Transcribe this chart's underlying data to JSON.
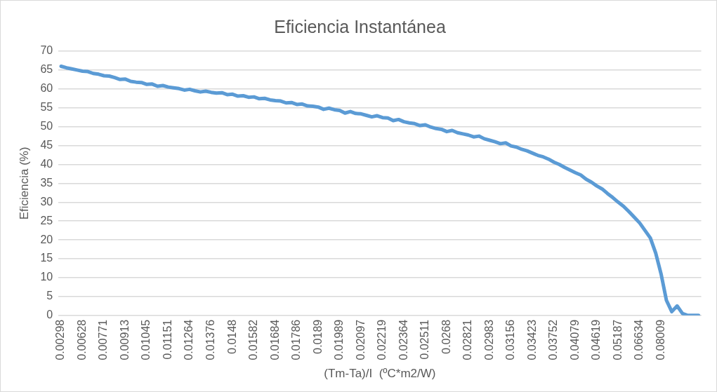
{
  "chart_data": {
    "type": "line",
    "title": "Eficiencia Instantánea",
    "xlabel": "(Tm-Ta)/I  (ºC*m2/W)",
    "ylabel": "Eficiencia (%)",
    "categories": [
      "0.00298",
      null,
      null,
      null,
      "0.00628",
      null,
      null,
      null,
      "0.00771",
      null,
      null,
      null,
      "0.00913",
      null,
      null,
      null,
      "0.01045",
      null,
      null,
      null,
      "0.01151",
      null,
      null,
      null,
      "0.01264",
      null,
      null,
      null,
      "0.01376",
      null,
      null,
      null,
      "0.0148",
      null,
      null,
      null,
      "0.01582",
      null,
      null,
      null,
      "0.01684",
      null,
      null,
      null,
      "0.01786",
      null,
      null,
      null,
      "0.0189",
      null,
      null,
      null,
      "0.01989",
      null,
      null,
      null,
      "0.02097",
      null,
      null,
      null,
      "0.02219",
      null,
      null,
      null,
      "0.02364",
      null,
      null,
      null,
      "0.02511",
      null,
      null,
      null,
      "0.0268",
      null,
      null,
      null,
      "0.02821",
      null,
      null,
      null,
      "0.02983",
      null,
      null,
      null,
      "0.03156",
      null,
      null,
      null,
      "0.03423",
      null,
      null,
      null,
      "0.03752",
      null,
      null,
      null,
      "0.04079",
      null,
      null,
      null,
      "0.04619",
      null,
      null,
      null,
      "0.05187",
      null,
      null,
      null,
      "0.06634",
      null,
      null,
      null,
      "0.08009",
      null,
      null,
      null,
      null,
      null,
      null,
      null
    ],
    "series": [
      {
        "color": "#5b9bd5",
        "values": [
          66,
          65.6,
          65.3,
          65,
          64.7,
          64.6,
          64.1,
          63.9,
          63.5,
          63.4,
          63,
          62.5,
          62.6,
          62,
          61.8,
          61.7,
          61.2,
          61.3,
          60.7,
          60.9,
          60.5,
          60.3,
          60.1,
          59.7,
          59.9,
          59.5,
          59.2,
          59.4,
          59.1,
          58.9,
          59,
          58.5,
          58.6,
          58.1,
          58.2,
          57.8,
          57.9,
          57.4,
          57.5,
          57.1,
          56.9,
          56.8,
          56.3,
          56.4,
          55.9,
          56,
          55.5,
          55.4,
          55.2,
          54.6,
          54.9,
          54.5,
          54.3,
          53.6,
          54,
          53.5,
          53.4,
          53,
          52.6,
          52.9,
          52.4,
          52.3,
          51.6,
          51.9,
          51.3,
          51,
          50.8,
          50.3,
          50.5,
          49.9,
          49.5,
          49.3,
          48.7,
          49,
          48.4,
          48.1,
          47.8,
          47.3,
          47.5,
          46.8,
          46.4,
          46,
          45.5,
          45.7,
          44.9,
          44.6,
          44,
          43.6,
          43,
          42.4,
          42,
          41.4,
          40.6,
          40,
          39.2,
          38.5,
          37.8,
          37.2,
          36.1,
          35.3,
          34.3,
          33.5,
          32.3,
          31.2,
          30,
          28.9,
          27.5,
          26,
          24.5,
          22.5,
          20.5,
          16.5,
          11,
          4,
          1,
          2.5,
          0.5,
          0,
          0,
          0
        ]
      }
    ],
    "ylim": [
      0,
      70
    ],
    "yticks": [
      0,
      5,
      10,
      15,
      20,
      25,
      30,
      35,
      40,
      45,
      50,
      55,
      60,
      65,
      70
    ],
    "grid": "y",
    "legend": false,
    "marker": "none",
    "line_style": "solid"
  }
}
